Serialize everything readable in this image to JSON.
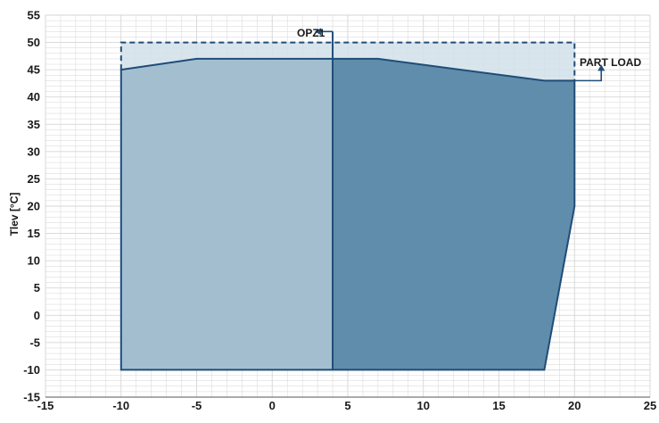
{
  "chart_data": {
    "type": "area",
    "title": "",
    "xlabel": "",
    "ylabel": "Tlev [°C]",
    "xlim": [
      -15,
      25
    ],
    "ylim": [
      -15,
      55
    ],
    "x_ticks": [
      -15,
      -10,
      -5,
      0,
      5,
      10,
      15,
      20,
      25
    ],
    "y_ticks": [
      -15,
      -10,
      -5,
      0,
      5,
      10,
      15,
      20,
      25,
      30,
      35,
      40,
      45,
      50,
      55
    ],
    "grid": true,
    "series": [
      {
        "name": "",
        "fill": "#4d7f9e",
        "points": [
          [
            -10,
            -10
          ],
          [
            -10,
            45
          ],
          [
            -5,
            47
          ],
          [
            7,
            47
          ],
          [
            18,
            43
          ],
          [
            20,
            43
          ],
          [
            20,
            20
          ],
          [
            18,
            -10
          ]
        ]
      },
      {
        "name": "OPZ1",
        "fill": "#4d7f9e",
        "points": [
          [
            4,
            -10
          ],
          [
            4,
            47
          ],
          [
            7,
            47
          ],
          [
            18,
            43
          ],
          [
            20,
            43
          ],
          [
            20,
            20
          ],
          [
            18,
            -10
          ]
        ]
      },
      {
        "name": "PART LOAD",
        "fill": "#c8d8e6",
        "points": [
          [
            -10,
            45
          ],
          [
            -10,
            50
          ],
          [
            20,
            50
          ],
          [
            20,
            43
          ],
          [
            18,
            43
          ],
          [
            7,
            47
          ],
          [
            -5,
            47
          ]
        ]
      }
    ],
    "annotations": [
      {
        "text": "OPZ1",
        "x": 4,
        "y": 52
      },
      {
        "text": "PART LOAD",
        "x": 20,
        "y": 47
      }
    ],
    "colors": {
      "outline": "#1f4d78",
      "grid": "#d6d6d6",
      "opz1_region": "#5f8dab",
      "left_region": "#a3bfcf",
      "part_load_band": "#d2e0ea"
    }
  }
}
